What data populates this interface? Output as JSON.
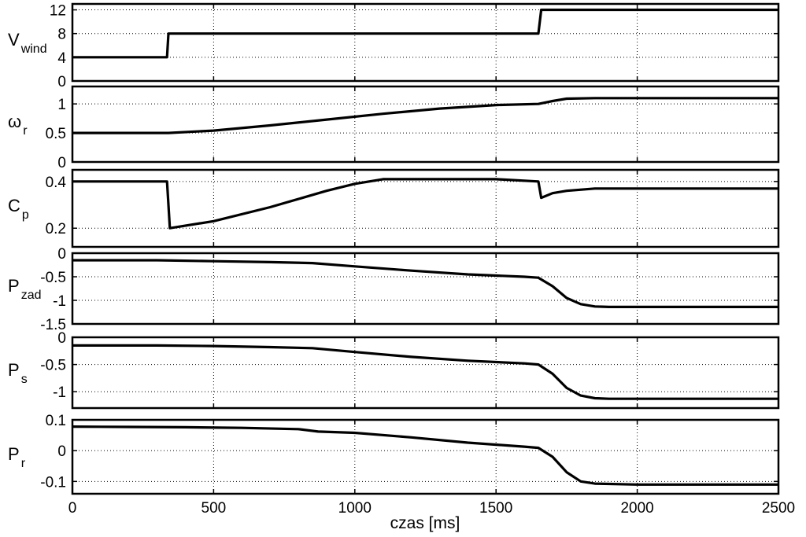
{
  "chart_data": {
    "type": "line",
    "x_axis": {
      "label": "czas [ms]",
      "range": [
        0,
        2500
      ],
      "ticks": [
        0,
        500,
        1000,
        1500,
        2000,
        2500
      ],
      "tick_labels": [
        "0",
        "500",
        "1000",
        "1500",
        "2000",
        "2500"
      ]
    },
    "grid": "dotted",
    "panels": [
      {
        "ylabel": "V",
        "ylabel_sub": "wind",
        "ylim": [
          0,
          13
        ],
        "yticks": [
          0,
          4,
          8,
          12
        ],
        "ytick_labels": [
          "0",
          "4",
          "8",
          "12"
        ],
        "x": [
          0,
          335,
          340,
          1650,
          1660,
          2500
        ],
        "y": [
          4,
          4,
          8,
          8,
          12,
          12
        ]
      },
      {
        "ylabel": "ω",
        "ylabel_sub": "r",
        "ylim": [
          0,
          1.3
        ],
        "yticks": [
          0,
          0.5,
          1
        ],
        "ytick_labels": [
          "0",
          "0.5",
          "1"
        ],
        "x": [
          0,
          200,
          340,
          500,
          700,
          900,
          1100,
          1300,
          1500,
          1650,
          1700,
          1750,
          1850,
          2000,
          2500
        ],
        "y": [
          0.5,
          0.5,
          0.5,
          0.54,
          0.63,
          0.73,
          0.83,
          0.92,
          0.98,
          1.0,
          1.05,
          1.09,
          1.1,
          1.1,
          1.1
        ]
      },
      {
        "ylabel": "C",
        "ylabel_sub": "p",
        "ylim": [
          0.12,
          0.45
        ],
        "yticks": [
          0.2,
          0.4
        ],
        "ytick_labels": [
          "0.2",
          "0.4"
        ],
        "x": [
          0,
          335,
          345,
          500,
          700,
          900,
          1000,
          1100,
          1300,
          1500,
          1650,
          1660,
          1700,
          1750,
          1850,
          2000,
          2500
        ],
        "y": [
          0.4,
          0.4,
          0.2,
          0.23,
          0.29,
          0.36,
          0.39,
          0.41,
          0.41,
          0.41,
          0.4,
          0.33,
          0.35,
          0.36,
          0.37,
          0.37,
          0.37
        ]
      },
      {
        "ylabel": "P",
        "ylabel_sub": "zad",
        "ylim": [
          -1.5,
          0
        ],
        "yticks": [
          -1.5,
          -1,
          -0.5,
          0
        ],
        "ytick_labels": [
          "-1.5",
          "-1",
          "-0.5",
          "0"
        ],
        "x": [
          0,
          300,
          500,
          700,
          850,
          1000,
          1200,
          1400,
          1600,
          1650,
          1700,
          1750,
          1800,
          1850,
          1900,
          2000,
          2500
        ],
        "y": [
          -0.15,
          -0.15,
          -0.17,
          -0.19,
          -0.21,
          -0.28,
          -0.37,
          -0.45,
          -0.5,
          -0.52,
          -0.7,
          -0.95,
          -1.08,
          -1.13,
          -1.14,
          -1.14,
          -1.14
        ]
      },
      {
        "ylabel": "P",
        "ylabel_sub": "s",
        "ylim": [
          -1.3,
          0
        ],
        "yticks": [
          -1,
          -0.5,
          0
        ],
        "ytick_labels": [
          "-1",
          "-0.5",
          "0"
        ],
        "x": [
          0,
          300,
          500,
          700,
          850,
          1000,
          1200,
          1400,
          1600,
          1650,
          1700,
          1750,
          1800,
          1850,
          1900,
          2000,
          2500
        ],
        "y": [
          -0.15,
          -0.15,
          -0.16,
          -0.18,
          -0.2,
          -0.27,
          -0.36,
          -0.43,
          -0.48,
          -0.5,
          -0.67,
          -0.93,
          -1.07,
          -1.12,
          -1.13,
          -1.13,
          -1.13
        ]
      },
      {
        "ylabel": "P",
        "ylabel_sub": "r",
        "ylim": [
          -0.14,
          0.1
        ],
        "yticks": [
          -0.1,
          0,
          0.1
        ],
        "ytick_labels": [
          "-0.1",
          "0",
          "0.1"
        ],
        "x": [
          0,
          200,
          400,
          600,
          800,
          870,
          1000,
          1200,
          1400,
          1600,
          1650,
          1700,
          1750,
          1800,
          1850,
          2000,
          2500
        ],
        "y": [
          0.078,
          0.077,
          0.076,
          0.074,
          0.07,
          0.062,
          0.058,
          0.043,
          0.026,
          0.013,
          0.009,
          -0.02,
          -0.07,
          -0.1,
          -0.107,
          -0.11,
          -0.11
        ]
      }
    ]
  }
}
